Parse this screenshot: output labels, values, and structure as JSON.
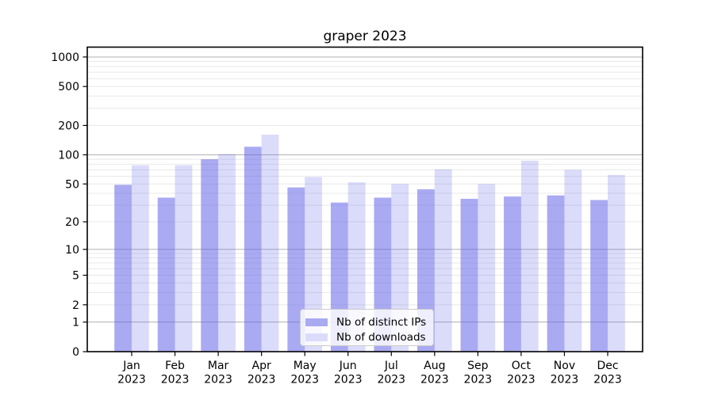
{
  "title": "graper 2023",
  "chart_data": {
    "type": "bar",
    "title": "graper 2023",
    "categories": [
      "Jan\n2023",
      "Feb\n2023",
      "Mar\n2023",
      "Apr\n2023",
      "May\n2023",
      "Jun\n2023",
      "Jul\n2023",
      "Aug\n2023",
      "Sep\n2023",
      "Oct\n2023",
      "Nov\n2023",
      "Dec\n2023"
    ],
    "series": [
      {
        "name": "Nb of distinct IPs",
        "color": "#aaaaf1",
        "fill_rgba": "rgba(100,100,232,0.55)",
        "values": [
          49,
          36,
          90,
          121,
          46,
          32,
          36,
          44,
          35,
          37,
          38,
          34
        ]
      },
      {
        "name": "Nb of downloads",
        "color": "#dcdcfa",
        "fill_rgba": "rgba(100,100,232,0.23)",
        "values": [
          78,
          78,
          102,
          161,
          59,
          52,
          50,
          71,
          50,
          87,
          70,
          62
        ]
      }
    ],
    "xlabel": "",
    "ylabel": "",
    "yscale": "log(value+1), symlog-style with 0 baseline",
    "yticks": [
      0,
      1,
      2,
      5,
      10,
      20,
      50,
      100,
      200,
      500,
      1000
    ],
    "ylim": [
      0,
      1260
    ],
    "grid": "both (major darker, minor faint)",
    "legend_position": "lower center",
    "colors": {
      "grid_major": "#b0b0b0",
      "grid_minor": "#e8e8e8",
      "spine": "#000000",
      "tick_label": "#000000",
      "legend_border": "#cccccc"
    }
  }
}
